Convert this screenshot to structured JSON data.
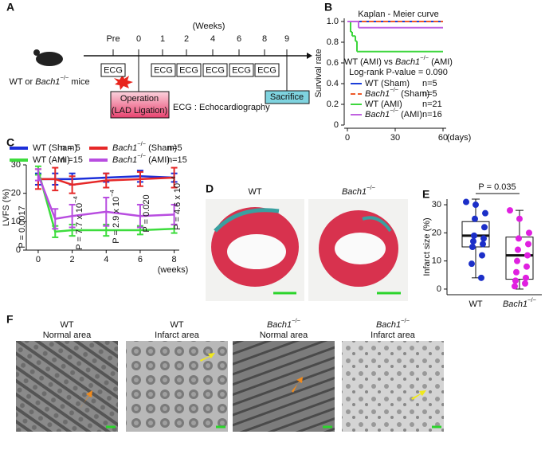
{
  "panel_labels": [
    "A",
    "B",
    "C",
    "D",
    "E",
    "F"
  ],
  "panel_a": {
    "weeks_label": "(Weeks)",
    "timepoints": [
      "Pre",
      "0",
      "1",
      "2",
      "4",
      "6",
      "8",
      "9"
    ],
    "subject": "WT or Bach1−/− mice",
    "ecg": "ECG",
    "operation": [
      "Operation",
      "(LAD Ligation)"
    ],
    "sacrifice": "Sacrifice",
    "ecg_note": "ECG : Echocardiography"
  },
  "chart_data": [
    {
      "type": "step",
      "title": "Kaplan - Meier curve",
      "annotations": [
        "WT (AMI) vs Bach1−/− (AMI)",
        "Log-rank P-value = 0.090"
      ],
      "ylabel": "Survival rate",
      "xlabel": "(days)",
      "xlim": [
        -2,
        62
      ],
      "ylim": [
        0,
        1
      ],
      "xticks": [
        0,
        30,
        60
      ],
      "yticks": [
        0,
        0.2,
        0.4,
        0.6,
        0.8,
        {
          "value": 1,
          "label": "1.0"
        }
      ],
      "series": [
        {
          "name": "WT (Sham)",
          "n": "n=5",
          "color": "#1c3fd9",
          "x": [
            0,
            60
          ],
          "values": [
            1,
            1
          ]
        },
        {
          "name": "Bach1−/− (Sham)",
          "n": "n=5",
          "color": "#ee5a2a",
          "dash": true,
          "x": [
            0,
            60
          ],
          "values": [
            1,
            1
          ]
        },
        {
          "name": "WT (AMI)",
          "n": "n=21",
          "color": "#3dd63d",
          "x": [
            0,
            2,
            3,
            5,
            6,
            60
          ],
          "values": [
            1,
            0.9,
            0.86,
            0.81,
            0.71,
            0.71
          ]
        },
        {
          "name": "Bach1−/− (AMI)",
          "n": "n=16",
          "color": "#c062e0",
          "x": [
            0,
            7,
            60
          ],
          "values": [
            1,
            0.94,
            0.94
          ]
        }
      ]
    },
    {
      "type": "line",
      "ylabel": "LVFS (%)",
      "xlabel": "(weeks)",
      "x": [
        0,
        1,
        2,
        4,
        6,
        8
      ],
      "xlim": [
        -0.7,
        8.3
      ],
      "ylim": [
        0,
        30
      ],
      "xticks": [
        0,
        2,
        4,
        6,
        8
      ],
      "yticks": [
        0,
        10,
        20,
        30
      ],
      "series": [
        {
          "name": "WT (Sham)",
          "n": "n = 5",
          "color": "#1c2fd9",
          "values": [
            25,
            25,
            25,
            25.5,
            26,
            25.5
          ],
          "errors": [
            2,
            2,
            2,
            1.5,
            2,
            1.5
          ]
        },
        {
          "name": "Bach1−/− (Sham)",
          "n": "n=5",
          "color": "#e62828",
          "values": [
            25,
            25,
            23,
            24.5,
            25,
            25.5
          ],
          "errors": [
            3.5,
            4,
            3,
            2.5,
            2.5,
            3.5
          ]
        },
        {
          "name": "WT (AMI)",
          "n": "n =15",
          "color": "#3ddc3d",
          "values": [
            28,
            6.5,
            7,
            7,
            7,
            7.5
          ],
          "errors": [
            1.5,
            2,
            2,
            2,
            1.5,
            1.5
          ]
        },
        {
          "name": "Bach1−/− (AMI)",
          "n": "n=15",
          "color": "#b84de0",
          "values": [
            26.5,
            11,
            12,
            13.5,
            12,
            12.5
          ],
          "errors": [
            2,
            3.5,
            4,
            5,
            4,
            3.5
          ]
        }
      ],
      "p_values": [
        "P = 0.0017",
        "P = 7.7 x 10−4",
        "P = 2.9 x 10−4",
        "P = 0.020",
        "P = 4.6 x 10−4"
      ]
    },
    {
      "type": "box",
      "ylabel": "Infarct size (%)",
      "categories": [
        "WT",
        "Bach1−/−"
      ],
      "ylim": [
        -2,
        32
      ],
      "yticks": [
        0,
        10,
        20,
        30
      ],
      "annotation": "P = 0.035",
      "boxes": [
        {
          "color": "#1c2fc8",
          "min": 4,
          "q1": 15,
          "median": 19,
          "q3": 24,
          "max": 32,
          "points": [
            31,
            30,
            27,
            25,
            22,
            19,
            18,
            17,
            16,
            15,
            12,
            9,
            4
          ]
        },
        {
          "color": "#e020e0",
          "min": 0,
          "q1": 3.5,
          "median": 12,
          "q3": 18.5,
          "max": 28,
          "points": [
            28,
            25,
            20,
            18,
            16,
            14,
            12,
            10,
            8,
            6,
            4,
            3,
            2,
            1
          ]
        }
      ]
    }
  ],
  "panel_d": {
    "labels": [
      "WT",
      "Bach1−/−"
    ]
  },
  "panel_f": {
    "images": [
      {
        "genotype": "WT",
        "area": "Normal area"
      },
      {
        "genotype": "WT",
        "area": "Infarct area"
      },
      {
        "genotype": "Bach1−/−",
        "area": "Normal area"
      },
      {
        "genotype": "Bach1−/−",
        "area": "Infarct area"
      }
    ]
  }
}
